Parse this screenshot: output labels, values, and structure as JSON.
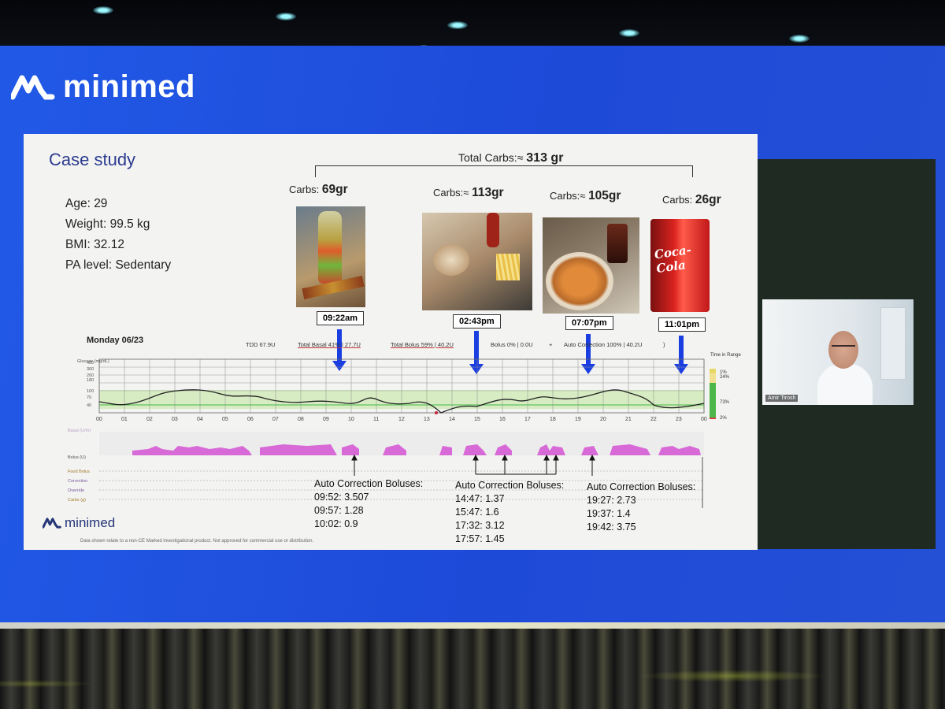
{
  "brand": {
    "name": "minimed",
    "color": "#ffffff",
    "logo_icon": "minimed-logo-icon"
  },
  "slide": {
    "title": "Case study",
    "patient": {
      "age": "Age: 29",
      "weight": "Weight: 99.5 kg",
      "bmi": "BMI: 32.12",
      "pa_level": "PA level: Sedentary"
    },
    "total_carbs": {
      "prefix": "Total Carbs:≈",
      "value": "313 gr"
    },
    "meals": [
      {
        "label": "Carbs:",
        "value": "69gr",
        "time": "09:22am",
        "photo": "drink-and-candy-bar-photo"
      },
      {
        "label": "Carbs:≈",
        "value": "113gr",
        "time": "02:43pm",
        "photo": "wrap-and-fries-photo"
      },
      {
        "label": "Carbs:≈",
        "value": "105gr",
        "time": "07:07pm",
        "photo": "pasta-bowl-photo"
      },
      {
        "label": "Carbs:",
        "value": "26gr",
        "time": "11:01pm",
        "photo": "coca-cola-can-photo"
      }
    ],
    "day": "Monday 06/23",
    "stats": {
      "tdd": "TDD 67.9U",
      "basal": "Total Basal 41% | 27.7U",
      "bolus": "Total Bolus 59% | 40.2U",
      "bolus_split": "Bolus 0% | 0.0U",
      "plus": "+",
      "auto_correction": "Auto Correction 100% | 40.2U",
      "paren": ")"
    },
    "chart_labels": {
      "glucose_axis": "Glucose (mg/dL)",
      "y_ticks": [
        "400",
        "300",
        "200",
        "180",
        "100",
        "70",
        "40"
      ],
      "time_ticks": [
        "00",
        "01",
        "02",
        "03",
        "04",
        "05",
        "06",
        "07",
        "08",
        "09",
        "10",
        "11",
        "12",
        "13",
        "14",
        "15",
        "16",
        "17",
        "18",
        "19",
        "20",
        "21",
        "22",
        "23",
        "00"
      ],
      "time_in_range_title": "Time in Range",
      "time_in_range": [
        "1%",
        "24%",
        "73%",
        "2%"
      ],
      "rows": [
        "Basal (U/hr)",
        "Bolus (U)",
        "Food Bolus",
        "Correction",
        "Override",
        "Carbs (g)"
      ]
    },
    "auto_corrections": [
      {
        "title": "Auto Correction Boluses:",
        "items": [
          "09:52: 3.507",
          "09:57: 1.28",
          "10:02: 0.9"
        ]
      },
      {
        "title": "Auto Correction Boluses:",
        "items": [
          "14:47: 1.37",
          "15:47: 1.6",
          "17:32: 3.12",
          "17:57: 1.45"
        ]
      },
      {
        "title": "Auto Correction Boluses:",
        "items": [
          "19:27: 2.73",
          "19:37: 1.4",
          "19:42: 3.75"
        ]
      }
    ],
    "footer_brand": "minimed",
    "disclaimer": "Data shown relate to a non-CE Marked investigational product. Not approved for commercial use or distribution."
  },
  "presenter": {
    "name": "Amir Tirosh"
  },
  "colors": {
    "accent_blue": "#1a3ee0",
    "screen_blue": "#1f4fe0",
    "slide_title": "#2c3b90",
    "basal_fill": "#d86ad8",
    "range_band": "#cfeab8"
  }
}
